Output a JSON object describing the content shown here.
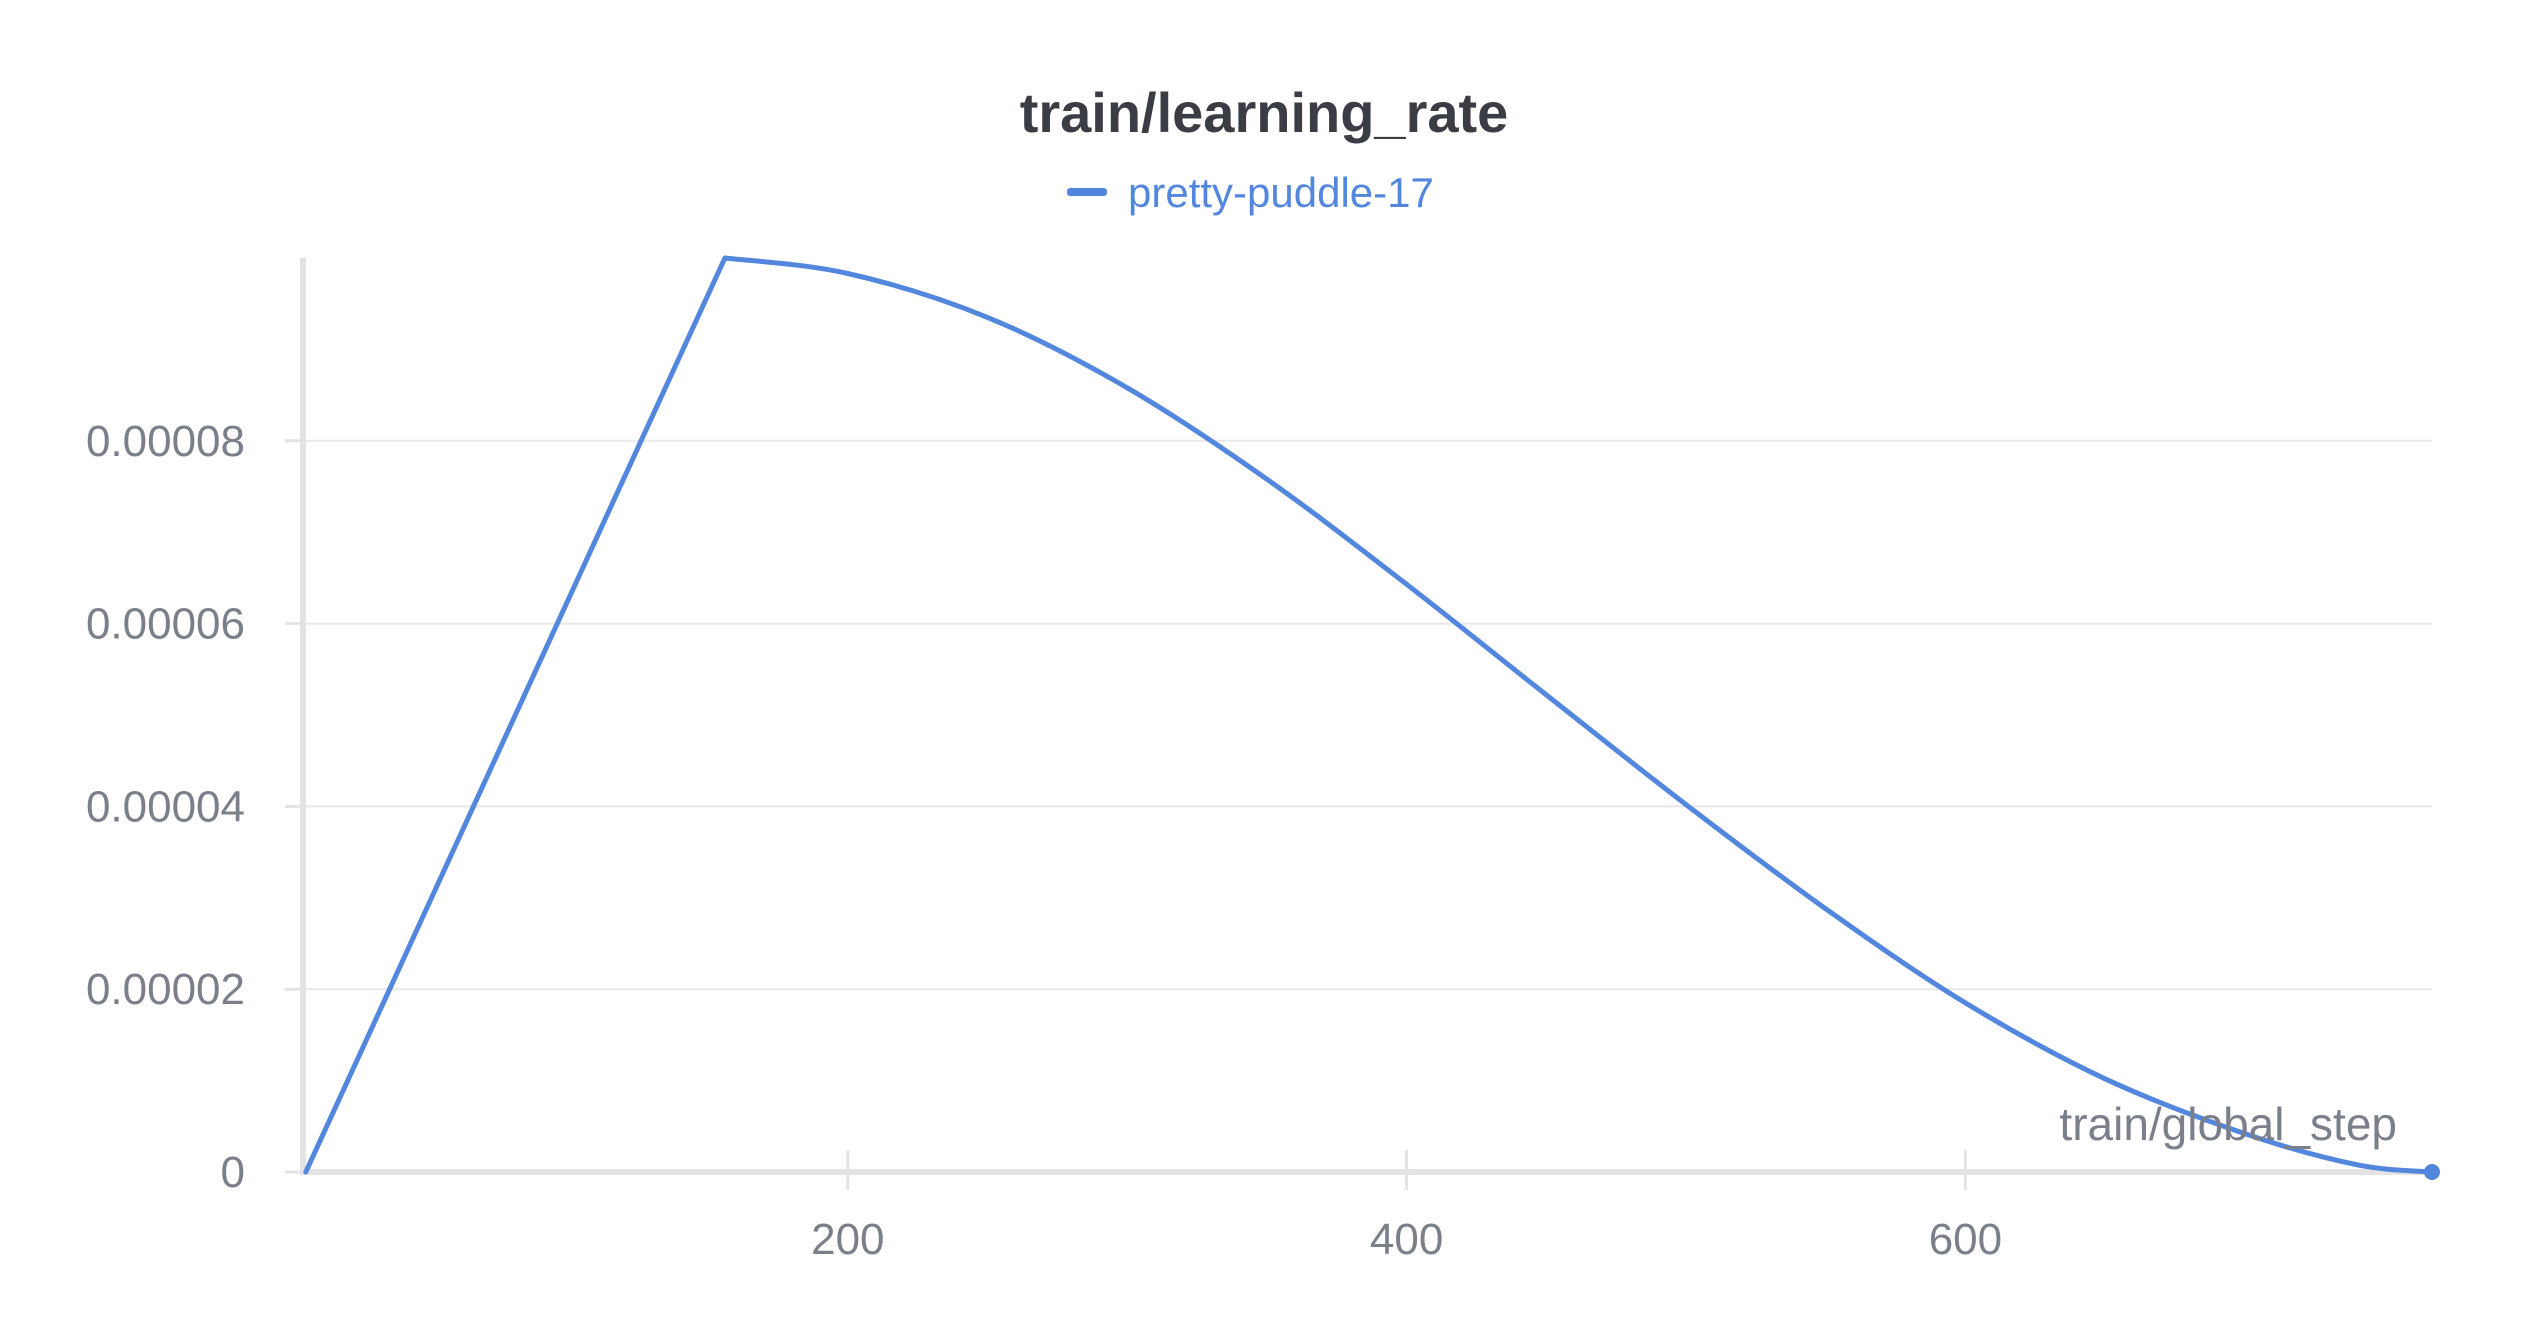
{
  "chart_data": {
    "type": "line",
    "title": "train/learning_rate",
    "xlabel": "train/global_step",
    "ylabel": "",
    "xlim": [
      5,
      767
    ],
    "ylim": [
      0,
      0.0001
    ],
    "x_ticks": [
      200,
      400,
      600
    ],
    "x_tick_labels": [
      "200",
      "400",
      "600"
    ],
    "y_ticks": [
      0,
      2e-05,
      4e-05,
      6e-05,
      8e-05
    ],
    "y_tick_labels": [
      "0",
      "0.00002",
      "0.00004",
      "0.00006",
      "0.00008"
    ],
    "grid": true,
    "legend_position": "top-center",
    "colors": {
      "series": "#5387dd"
    },
    "series": [
      {
        "name": "pretty-puddle-17",
        "color": "#5387dd",
        "x": [
          6,
          156,
          200,
          250,
          300,
          350,
          400,
          450,
          500,
          550,
          600,
          650,
          700,
          740,
          767
        ],
        "y": [
          0,
          0.0001,
          9.83e-05,
          9.35e-05,
          8.58e-05,
          7.58e-05,
          6.43e-05,
          5.22e-05,
          4.02e-05,
          2.88e-05,
          1.85e-05,
          1.02e-05,
          4.2e-06,
          8e-07,
          0
        ]
      }
    ]
  }
}
